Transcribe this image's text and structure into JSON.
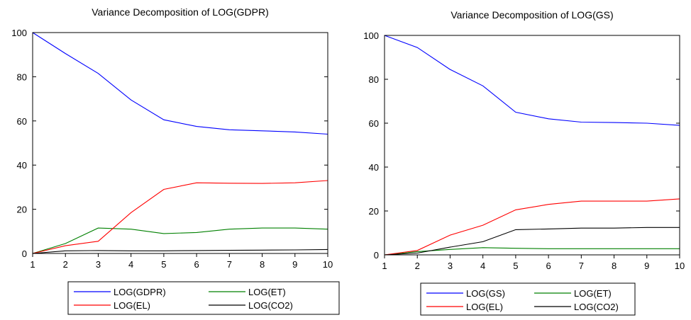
{
  "chart_data": [
    {
      "type": "line",
      "title": "Variance Decomposition of LOG(GDPR)",
      "xlabel": "",
      "ylabel": "",
      "x": [
        1,
        2,
        3,
        4,
        5,
        6,
        7,
        8,
        9,
        10
      ],
      "xlim": [
        1,
        10
      ],
      "ylim": [
        0,
        100
      ],
      "yticks": [
        0,
        20,
        40,
        60,
        80,
        100
      ],
      "grid": false,
      "legend_position": "bottom",
      "series": [
        {
          "name": "LOG(GDPR)",
          "color": "#0000ff",
          "values": [
            100,
            90.5,
            81.5,
            69.5,
            60.5,
            57.5,
            56,
            55.5,
            55,
            54
          ]
        },
        {
          "name": "LOG(ET)",
          "color": "#008000",
          "values": [
            0,
            4.5,
            11.5,
            11,
            9,
            9.5,
            11,
            11.5,
            11.5,
            11
          ]
        },
        {
          "name": "LOG(EL)",
          "color": "#ff0000",
          "values": [
            0,
            3.5,
            5.5,
            18.5,
            29,
            32,
            31.8,
            31.7,
            32,
            33
          ]
        },
        {
          "name": "LOG(CO2)",
          "color": "#000000",
          "values": [
            0,
            1.2,
            1.3,
            1.2,
            1.2,
            1.3,
            1.4,
            1.5,
            1.6,
            1.8
          ]
        }
      ]
    },
    {
      "type": "line",
      "title": "Variance Decomposition of LOG(GS)",
      "xlabel": "",
      "ylabel": "",
      "x": [
        1,
        2,
        3,
        4,
        5,
        6,
        7,
        8,
        9,
        10
      ],
      "xlim": [
        1,
        10
      ],
      "ylim": [
        0,
        100
      ],
      "yticks": [
        0,
        20,
        40,
        60,
        80,
        100
      ],
      "grid": false,
      "legend_position": "bottom",
      "series": [
        {
          "name": "LOG(GS)",
          "color": "#0000ff",
          "values": [
            100,
            94.5,
            84.5,
            77,
            65,
            62,
            60.5,
            60.3,
            60,
            59
          ]
        },
        {
          "name": "LOG(ET)",
          "color": "#008000",
          "values": [
            0,
            1.5,
            2.5,
            3.3,
            3,
            2.8,
            2.8,
            2.8,
            2.8,
            2.8
          ]
        },
        {
          "name": "LOG(EL)",
          "color": "#ff0000",
          "values": [
            0,
            2,
            9,
            13.5,
            20.5,
            23,
            24.5,
            24.5,
            24.5,
            25.5
          ]
        },
        {
          "name": "LOG(CO2)",
          "color": "#000000",
          "values": [
            0,
            0.8,
            3.5,
            6,
            11.5,
            11.8,
            12.2,
            12.2,
            12.5,
            12.5
          ]
        }
      ]
    }
  ]
}
